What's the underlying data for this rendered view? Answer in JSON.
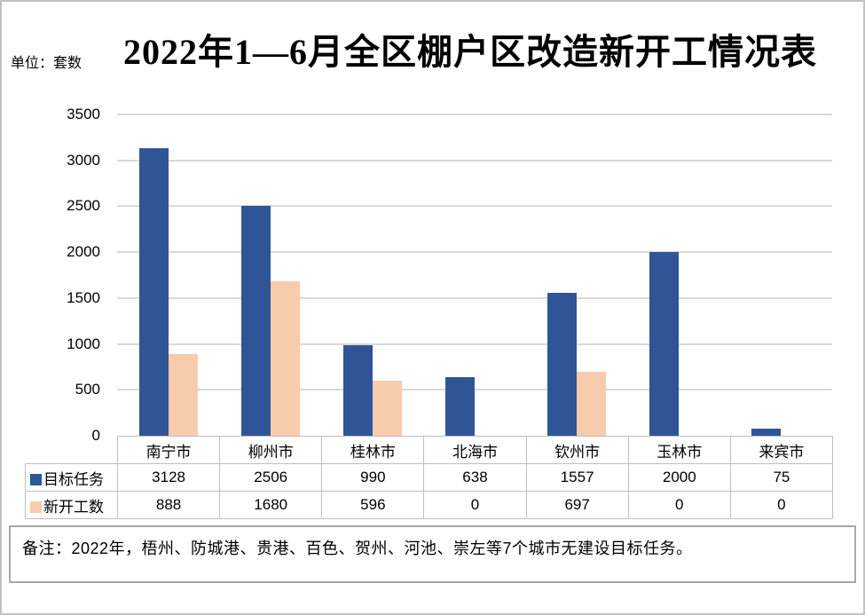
{
  "page": {
    "title": "2022年1—6月全区棚户区改造新开工情况表",
    "unit_label": "单位：套数",
    "note": "备注：2022年，梧州、防城港、贵港、百色、贺州、河池、崇左等7个城市无建设目标任务。"
  },
  "colors": {
    "series1": "#2F5597",
    "series2": "#F7CBAC",
    "gridline": "#D9D9D9",
    "table_border": "#BFBFBF",
    "note_border": "#A8A8A8"
  },
  "chart_data": {
    "type": "bar",
    "title": "2022年1—6月全区棚户区改造新开工情况表",
    "unit": "套数",
    "categories": [
      "南宁市",
      "柳州市",
      "桂林市",
      "北海市",
      "钦州市",
      "玉林市",
      "来宾市"
    ],
    "series": [
      {
        "name": "目标任务",
        "color": "#2F5597",
        "values": [
          3128,
          2506,
          990,
          638,
          1557,
          2000,
          75
        ]
      },
      {
        "name": "新开工数",
        "color": "#F7CBAC",
        "values": [
          888,
          1680,
          596,
          0,
          697,
          0,
          0
        ]
      }
    ],
    "ylim": [
      0,
      3500
    ],
    "yticks": [
      0,
      500,
      1000,
      1500,
      2000,
      2500,
      3000,
      3500
    ],
    "grid": true,
    "legend_position": "data-table-left",
    "data_table_attached": true
  }
}
